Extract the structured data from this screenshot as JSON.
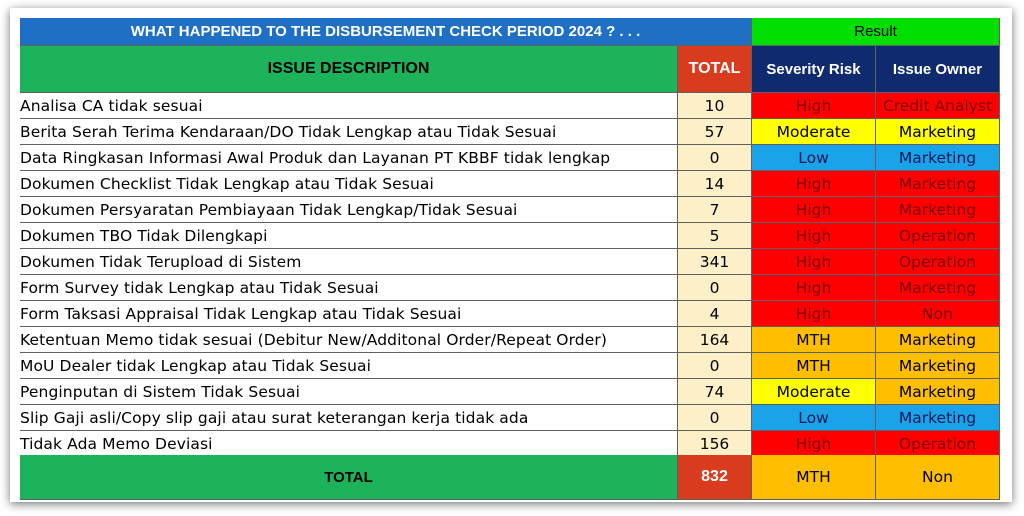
{
  "title": "WHAT HAPPENED TO THE DISBURSEMENT CHECK PERIOD 2024 ? . . .",
  "result_label": "Result",
  "headers": {
    "description": "ISSUE DESCRIPTION",
    "total": "TOTAL",
    "severity": "Severity Risk",
    "owner": "Issue Owner"
  },
  "colors": {
    "title_bg": "#1f6fc4",
    "result_bg": "#00e000",
    "header_green": "#1db35a",
    "header_red": "#d93b1f",
    "header_navy": "#0f2a6e",
    "high": "#ff0000",
    "moderate": "#ffff00",
    "low": "#1aa3e8",
    "mth": "#ffbf00"
  },
  "rows": [
    {
      "desc": "Analisa CA tidak sesuai",
      "total": "10",
      "severity": "High",
      "severity_level": "high",
      "owner": "Credit Analyst",
      "owner_color": "red"
    },
    {
      "desc": "Berita Serah Terima Kendaraan/DO Tidak Lengkap atau Tidak Sesuai",
      "total": "57",
      "severity": "Moderate",
      "severity_level": "moderate",
      "owner": "Marketing",
      "owner_color": "yellow"
    },
    {
      "desc": "Data Ringkasan Informasi Awal Produk dan Layanan PT KBBF tidak lengkap",
      "total": "0",
      "severity": "Low",
      "severity_level": "low",
      "owner": "Marketing",
      "owner_color": "blue"
    },
    {
      "desc": "Dokumen Checklist Tidak Lengkap atau Tidak Sesuai",
      "total": "14",
      "severity": "High",
      "severity_level": "high",
      "owner": "Marketing",
      "owner_color": "red"
    },
    {
      "desc": "Dokumen Persyaratan Pembiayaan Tidak Lengkap/Tidak Sesuai",
      "total": "7",
      "severity": "High",
      "severity_level": "high",
      "owner": "Marketing",
      "owner_color": "red"
    },
    {
      "desc": "Dokumen TBO Tidak Dilengkapi",
      "total": "5",
      "severity": "High",
      "severity_level": "high",
      "owner": "Operation",
      "owner_color": "red"
    },
    {
      "desc": "Dokumen Tidak Terupload di Sistem",
      "total": "341",
      "severity": "High",
      "severity_level": "high",
      "owner": "Operation",
      "owner_color": "red"
    },
    {
      "desc": "Form Survey tidak Lengkap atau Tidak Sesuai",
      "total": "0",
      "severity": "High",
      "severity_level": "high",
      "owner": "Marketing",
      "owner_color": "red"
    },
    {
      "desc": "Form Taksasi Appraisal Tidak Lengkap atau Tidak Sesuai",
      "total": "4",
      "severity": "High",
      "severity_level": "high",
      "owner": "Non",
      "owner_color": "red"
    },
    {
      "desc": "Ketentuan Memo tidak sesuai (Debitur New/Additonal Order/Repeat Order)",
      "total": "164",
      "severity": "MTH",
      "severity_level": "mth",
      "owner": "Marketing",
      "owner_color": "orange"
    },
    {
      "desc": "MoU Dealer tidak Lengkap atau Tidak Sesuai",
      "total": "0",
      "severity": "MTH",
      "severity_level": "mth",
      "owner": "Marketing",
      "owner_color": "orange"
    },
    {
      "desc": "Penginputan di Sistem Tidak Sesuai",
      "total": "74",
      "severity": "Moderate",
      "severity_level": "moderate",
      "owner": "Marketing",
      "owner_color": "orange"
    },
    {
      "desc": "Slip Gaji asli/Copy slip gaji atau surat keterangan kerja tidak ada",
      "total": "0",
      "severity": "Low",
      "severity_level": "low",
      "owner": "Marketing",
      "owner_color": "blue"
    },
    {
      "desc": "Tidak Ada Memo Deviasi",
      "total": "156",
      "severity": "High",
      "severity_level": "high",
      "owner": "Operation",
      "owner_color": "red"
    }
  ],
  "footer": {
    "label": "TOTAL",
    "total": "832",
    "severity": "MTH",
    "owner": "Non"
  }
}
